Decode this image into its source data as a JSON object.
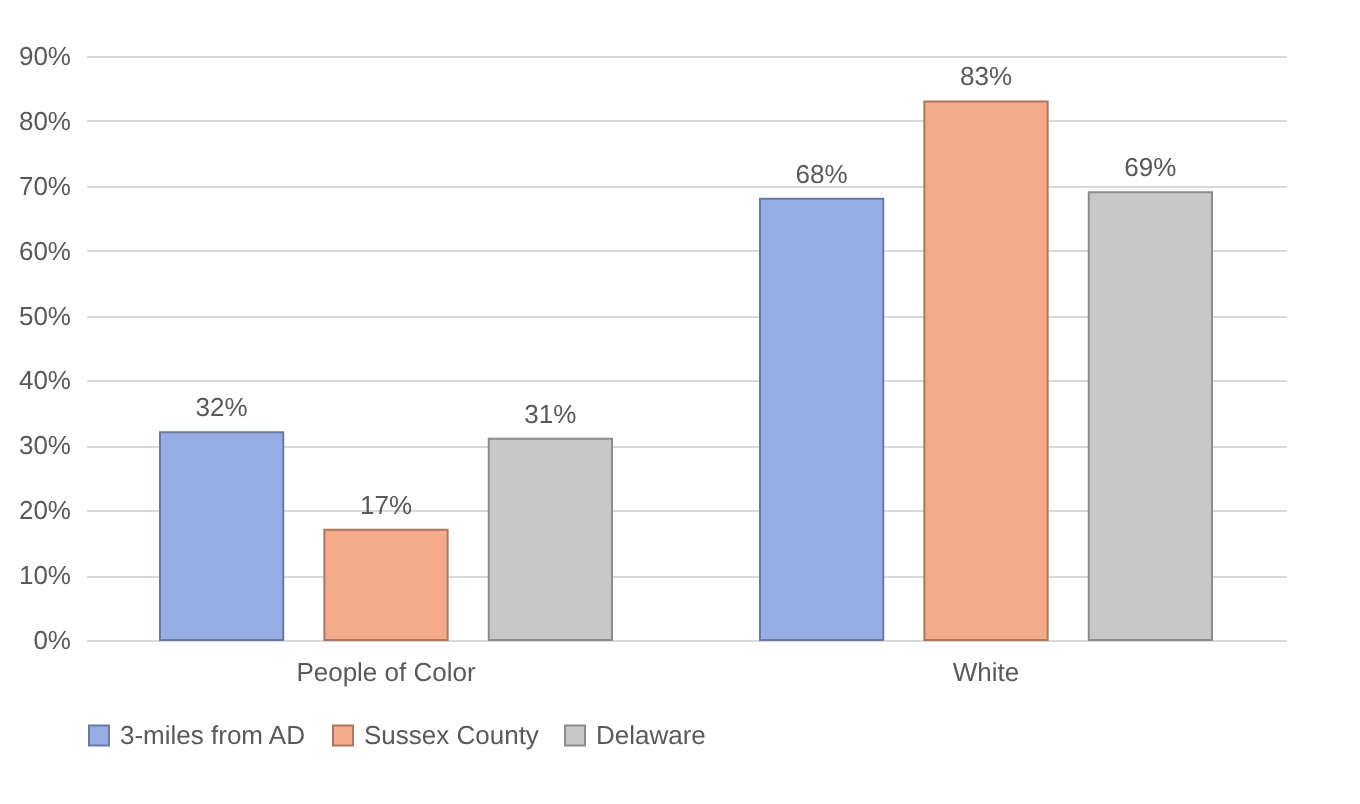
{
  "chart_data": {
    "type": "bar",
    "categories": [
      "People of Color",
      "White"
    ],
    "series": [
      {
        "name": "3-miles from AD",
        "color": "#97ade6",
        "values": [
          32,
          68
        ],
        "value_labels": [
          "32%",
          "68%"
        ]
      },
      {
        "name": "Sussex County",
        "color": "#f5ab8a",
        "values": [
          17,
          83
        ],
        "value_labels": [
          "17%",
          "83%"
        ]
      },
      {
        "name": "Delaware",
        "color": "#c8c8c8",
        "values": [
          31,
          69
        ],
        "value_labels": [
          "31%",
          "69%"
        ]
      }
    ],
    "ylim": [
      0,
      90
    ],
    "yticks": [
      {
        "value": 0,
        "label": "0%"
      },
      {
        "value": 10,
        "label": "10%"
      },
      {
        "value": 20,
        "label": "20%"
      },
      {
        "value": 30,
        "label": "30%"
      },
      {
        "value": 40,
        "label": "40%"
      },
      {
        "value": 50,
        "label": "50%"
      },
      {
        "value": 60,
        "label": "60%"
      },
      {
        "value": 70,
        "label": "70%"
      },
      {
        "value": 80,
        "label": "80%"
      },
      {
        "value": 90,
        "label": "90%"
      }
    ],
    "grid": "y",
    "legend": "bottom"
  }
}
